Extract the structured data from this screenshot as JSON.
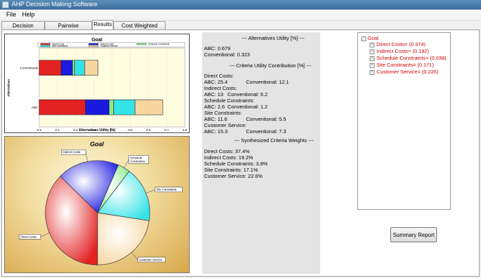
{
  "window": {
    "title": "AHP Decision Making Software"
  },
  "menu": [
    {
      "label": "File"
    },
    {
      "label": "Help"
    }
  ],
  "tabs": [
    {
      "label": "Decision Hierarchy",
      "active": false
    },
    {
      "label": "Pairwise Comparison",
      "active": false
    },
    {
      "label": "Results",
      "active": true
    },
    {
      "label": "Cost Weighted Analysis",
      "active": false
    }
  ],
  "colors": {
    "direct_costs": "#e32222",
    "indirect_costs": "#1a1ae0",
    "schedule_constraints": "#88e888",
    "site_constraints": "#33e3e8",
    "customer_service": "#f7d6a0"
  },
  "chart_data": [
    {
      "type": "bar",
      "orientation": "horizontal",
      "stacked": true,
      "title": "Goal",
      "xlabel": "Alternatives Utility [%]",
      "ylabel": "Alternatives",
      "categories": [
        "Conventional",
        "ABC"
      ],
      "xlim": [
        0,
        0.8
      ],
      "xticks": [
        "0.0",
        "0.1",
        "0.2",
        "0.3",
        "0.4",
        "0.5",
        "0.6",
        "0.7",
        "0.8"
      ],
      "series": [
        {
          "name": "Direct Costs",
          "values": [
            0.121,
            0.254
          ]
        },
        {
          "name": "Indirect Costs",
          "values": [
            0.062,
            0.13
          ]
        },
        {
          "name": "Schedule Constraints",
          "values": [
            0.012,
            0.026
          ]
        },
        {
          "name": "Site Constraints",
          "values": [
            0.055,
            0.116
          ]
        },
        {
          "name": "Customer Service",
          "values": [
            0.073,
            0.153
          ]
        }
      ],
      "legend_position": "top"
    },
    {
      "type": "pie",
      "title": "Goal",
      "labels": [
        "Direct Costs",
        "Indirect Costs",
        "Schedule Constraints",
        "Site Constraints",
        "Customer Service"
      ],
      "values": [
        37.4,
        19.2,
        3.8,
        17.1,
        22.6
      ]
    }
  ],
  "results": {
    "alt_header": "--- Alternatives Utility [%] ---",
    "alt_abc": "ABC: 0.679",
    "alt_conv": "Conventional: 0.323",
    "crit_header": "--- Criteria Utility Contribution [%] ---",
    "rows": [
      {
        "title": "Direct Costs:",
        "abc": "ABC: 25.4",
        "conv": "Conventional: 12.1"
      },
      {
        "title": "Indirect Costs:",
        "abc": "ABC: 13",
        "conv": "Conventional: 6.2"
      },
      {
        "title": "Schedule Constraints:",
        "abc": "ABC: 2.6",
        "conv": "Conventional: 1.2"
      },
      {
        "title": "Site Constraints:",
        "abc": "ABC: 11.6",
        "conv": "Conventional: 5.5"
      },
      {
        "title": "Customer Service:",
        "abc": "ABC: 15.3",
        "conv": "Conventional: 7.3"
      }
    ],
    "weights_header": "--- Synthesized Criteria Weights ---",
    "weights": [
      "Direct Costs: 37.4%",
      "Indirect Costs: 19.2%",
      "Schedule Constraints: 3.8%",
      "Site Constraints: 17.1%",
      "Customer Service: 22.6%"
    ]
  },
  "tree": {
    "root": "Goal",
    "children": [
      "Direct Costs=  (0.374)",
      "Indirect Costs=  (0.192)",
      "Schedule Constraints=  (0.038)",
      "Site Constraints=  (0.171)",
      "Customer Service=  (0.226)"
    ]
  },
  "buttons": {
    "summary": "Summary Report"
  }
}
